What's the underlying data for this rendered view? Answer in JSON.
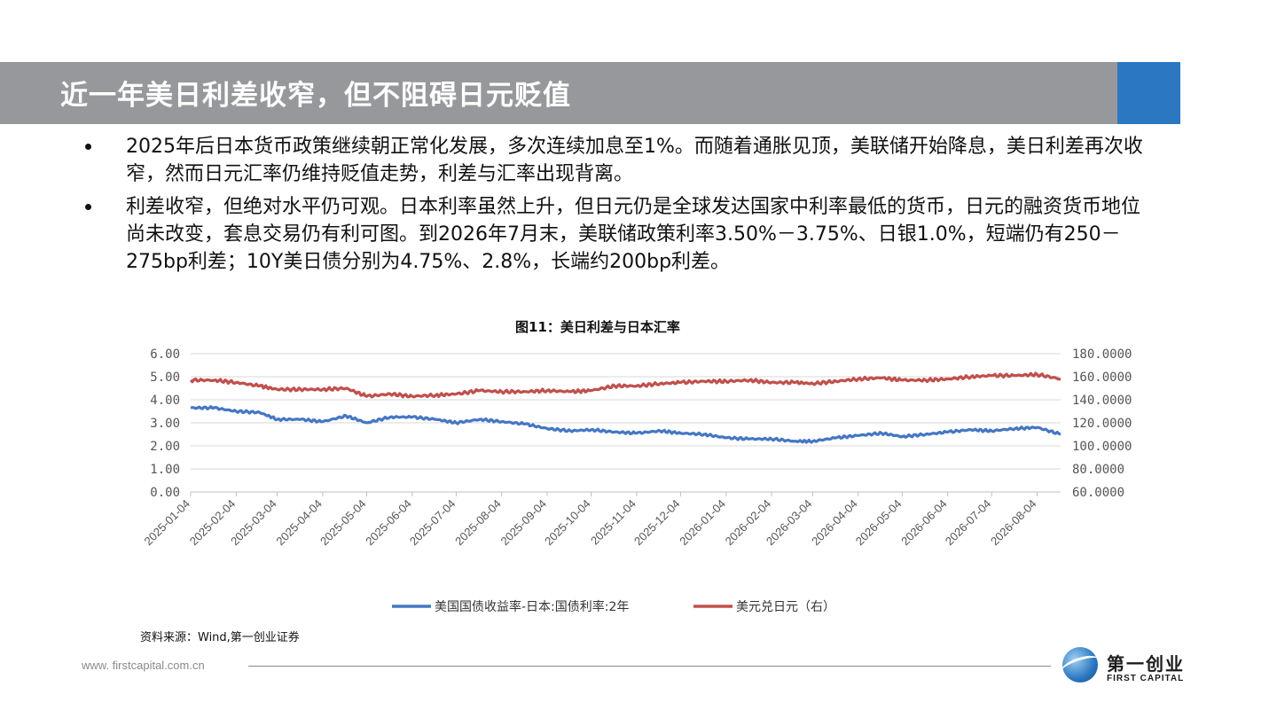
{
  "slide": {
    "title": "近一年美日利差收窄，但不阻碍日元贬值",
    "bullets": [
      "2025年后日本货币政策继续朝正常化发展，多次连续加息至1%。而随着通胀见顶，美联储开始降息，美日利差再次收窄，然而日元汇率仍维持贬值走势，利差与汇率出现背离。",
      "利差收窄，但绝对水平仍可观。日本利率虽然上升，但日元仍是全球发达国家中利率最低的货币，日元的融资货币地位尚未改变，套息交易仍有利可图。到2026年7月末，美联储政策利率3.50%－3.75%、日银1.0%，短端仍有250－275bp利差；10Y美日债分别为4.75%、2.8%，长端约200bp利差。"
    ],
    "figure_caption": "图11：美日利差与日本汇率",
    "source": "资料来源：Wind,第一创业证券",
    "footer_url": "www. firstcapital.com.cn",
    "logo_cn": "第一创业",
    "logo_en": "FIRST CAPITAL"
  },
  "colors": {
    "title_bar": "#97989b",
    "accent": "#2b77c0",
    "series_spread": "#4577c2",
    "series_fx": "#c0504d"
  },
  "chart_data": {
    "type": "line",
    "title": "图11：美日利差与日本汇率",
    "x_tick_labels": [
      "2025-01-04",
      "2025-02-04",
      "2025-03-04",
      "2025-04-04",
      "2025-05-04",
      "2025-06-04",
      "2025-07-04",
      "2025-08-04",
      "2025-09-04",
      "2025-10-04",
      "2025-11-04",
      "2025-12-04",
      "2026-01-04",
      "2026-02-04",
      "2026-03-04",
      "2026-04-04",
      "2026-05-04",
      "2026-06-04",
      "2026-07-04",
      "2026-08-04"
    ],
    "y_left": {
      "range": [
        0,
        6
      ],
      "ticks": [
        "0.00",
        "1.00",
        "2.00",
        "3.00",
        "4.00",
        "5.00",
        "6.00"
      ]
    },
    "y_right": {
      "range": [
        60,
        180
      ],
      "ticks": [
        "60.0000",
        "80.0000",
        "100.0000",
        "120.0000",
        "140.0000",
        "160.0000",
        "180.0000"
      ]
    },
    "grid": true,
    "legend_position": "bottom",
    "series": [
      {
        "name": "美国国债收益率-日本:国债利率:2年",
        "axis": "left",
        "color": "#4577c2",
        "x": [
          "2025-01-04",
          "2025-01-20",
          "2025-02-04",
          "2025-02-20",
          "2025-03-04",
          "2025-03-20",
          "2025-04-04",
          "2025-04-20",
          "2025-05-04",
          "2025-05-20",
          "2025-06-04",
          "2025-06-20",
          "2025-07-04",
          "2025-07-20",
          "2025-08-04",
          "2025-08-20",
          "2025-09-04",
          "2025-09-20",
          "2025-10-04",
          "2025-10-20",
          "2025-11-04",
          "2025-11-20",
          "2025-12-04",
          "2025-12-20",
          "2026-01-04",
          "2026-01-20",
          "2026-02-04",
          "2026-02-20",
          "2026-03-04",
          "2026-03-20",
          "2026-04-04",
          "2026-04-20",
          "2026-05-04",
          "2026-05-20",
          "2026-06-04",
          "2026-06-20",
          "2026-07-04",
          "2026-07-20",
          "2026-08-04",
          "2026-08-20"
        ],
        "values": [
          3.65,
          3.65,
          3.5,
          3.45,
          3.15,
          3.15,
          3.05,
          3.3,
          3.0,
          3.25,
          3.25,
          3.15,
          3.0,
          3.15,
          3.05,
          2.95,
          2.75,
          2.65,
          2.7,
          2.6,
          2.55,
          2.65,
          2.55,
          2.5,
          2.35,
          2.3,
          2.3,
          2.2,
          2.2,
          2.35,
          2.45,
          2.55,
          2.4,
          2.5,
          2.6,
          2.7,
          2.65,
          2.75,
          2.8,
          2.5
        ]
      },
      {
        "name": "美元兑日元（右）",
        "axis": "right",
        "color": "#c0504d",
        "x": [
          "2025-01-04",
          "2025-01-20",
          "2025-02-04",
          "2025-02-20",
          "2025-03-04",
          "2025-03-20",
          "2025-04-04",
          "2025-04-20",
          "2025-05-04",
          "2025-05-20",
          "2025-06-04",
          "2025-06-20",
          "2025-07-04",
          "2025-07-20",
          "2025-08-04",
          "2025-08-20",
          "2025-09-04",
          "2025-09-20",
          "2025-10-04",
          "2025-10-20",
          "2025-11-04",
          "2025-11-20",
          "2025-12-04",
          "2025-12-20",
          "2026-01-04",
          "2026-01-20",
          "2026-02-04",
          "2026-02-20",
          "2026-03-04",
          "2026-03-20",
          "2026-04-04",
          "2026-04-20",
          "2026-05-04",
          "2026-05-20",
          "2026-06-04",
          "2026-06-20",
          "2026-07-04",
          "2026-07-20",
          "2026-08-04",
          "2026-08-20"
        ],
        "values": [
          157,
          157,
          155,
          152,
          149,
          149,
          149,
          150,
          143,
          145,
          143,
          144,
          145,
          148,
          147,
          147,
          148,
          147,
          148,
          152,
          152,
          154,
          155,
          156,
          156,
          157,
          155,
          155,
          154,
          156,
          158,
          159,
          157,
          157,
          158,
          160,
          161,
          161,
          162,
          158
        ]
      }
    ]
  }
}
